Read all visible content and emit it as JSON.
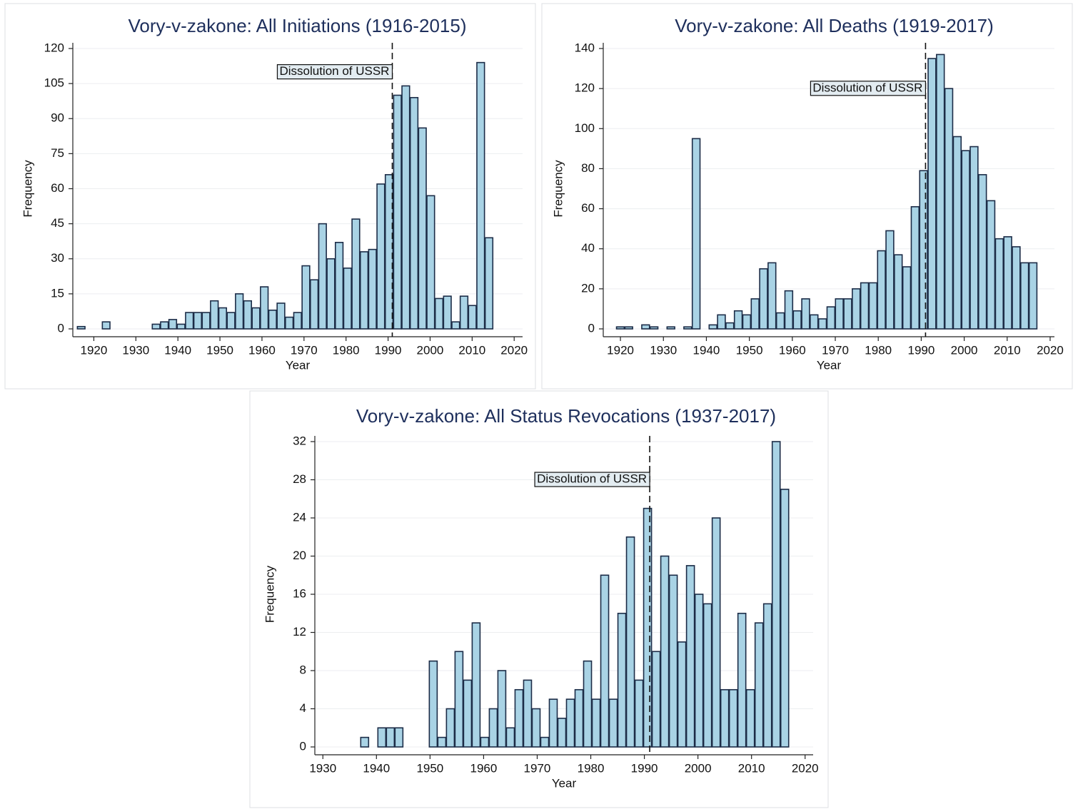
{
  "chart_data": [
    {
      "type": "histogram",
      "title": "Vory-v-zakone: All Initiations (1916-2015)",
      "x_label": "Year",
      "y_label": "Frequency",
      "annotation": "Dissolution of USSR",
      "vline": 1991,
      "color": "#a9d3e5",
      "edge_color": "#1c2c47",
      "grid": true,
      "bins": [
        1916,
        1917.98,
        1919.96,
        1921.94,
        1923.92,
        1925.9,
        1927.88,
        1929.86,
        1931.84,
        1933.82,
        1935.8,
        1937.78,
        1939.76,
        1941.74,
        1943.72,
        1945.7,
        1947.68,
        1949.66,
        1951.64,
        1953.62,
        1955.6,
        1957.58,
        1959.56,
        1961.54,
        1963.52,
        1965.5,
        1967.48,
        1969.46,
        1971.44,
        1973.42,
        1975.4,
        1977.38,
        1979.36,
        1981.34,
        1983.32,
        1985.3,
        1987.28,
        1989.26,
        1991.24,
        1993.22,
        1995.2,
        1997.18,
        1999.16,
        2001.14,
        2003.12,
        2005.1,
        2007.08,
        2009.06,
        2011.04,
        2013.02,
        2015
      ],
      "values": [
        1,
        0,
        0,
        3,
        0,
        0,
        0,
        0,
        0,
        2,
        3,
        4,
        2,
        7,
        7,
        7,
        12,
        9,
        7,
        15,
        12,
        9,
        18,
        8,
        11,
        5,
        7,
        27,
        21,
        45,
        30,
        37,
        26,
        47,
        33,
        34,
        62,
        66,
        100,
        104,
        99,
        86,
        57,
        13,
        14,
        3,
        14,
        10,
        114,
        39
      ],
      "xlim": [
        1915,
        2022
      ],
      "xticks": [
        1920,
        1930,
        1940,
        1950,
        1960,
        1970,
        1980,
        1990,
        2000,
        2010,
        2020
      ],
      "ylim": [
        0,
        120
      ],
      "yticks": [
        0,
        15,
        30,
        45,
        60,
        75,
        90,
        105,
        120
      ]
    },
    {
      "type": "histogram",
      "title": "Vory-v-zakone: All Deaths (1919-2017)",
      "x_label": "Year",
      "y_label": "Frequency",
      "annotation": "Dissolution of USSR",
      "vline": 1991,
      "color": "#a9d3e5",
      "edge_color": "#1c2c47",
      "grid": true,
      "bins": [
        1919,
        1920.96,
        1922.92,
        1924.88,
        1926.84,
        1928.8,
        1930.76,
        1932.72,
        1934.68,
        1936.64,
        1938.6,
        1940.56,
        1942.52,
        1944.48,
        1946.44,
        1948.4,
        1950.36,
        1952.32,
        1954.28,
        1956.24,
        1958.2,
        1960.16,
        1962.12,
        1964.08,
        1966.04,
        1968,
        1969.96,
        1971.92,
        1973.88,
        1975.84,
        1977.8,
        1979.76,
        1981.72,
        1983.68,
        1985.64,
        1987.6,
        1989.56,
        1991.52,
        1993.48,
        1995.44,
        1997.4,
        1999.36,
        2001.32,
        2003.28,
        2005.24,
        2007.2,
        2009.16,
        2011.12,
        2013.08,
        2015.04,
        2017
      ],
      "values": [
        1,
        1,
        0,
        2,
        1,
        0,
        1,
        0,
        1,
        95,
        0,
        2,
        7,
        3,
        9,
        7,
        15,
        30,
        33,
        8,
        19,
        9,
        15,
        7,
        5,
        11,
        15,
        15,
        20,
        23,
        23,
        39,
        49,
        37,
        31,
        61,
        79,
        135,
        137,
        120,
        96,
        89,
        91,
        77,
        64,
        45,
        46,
        41,
        33,
        33
      ],
      "xlim": [
        1916,
        2021
      ],
      "xticks": [
        1920,
        1930,
        1940,
        1950,
        1960,
        1970,
        1980,
        1990,
        2000,
        2010,
        2020
      ],
      "ylim": [
        0,
        140
      ],
      "yticks": [
        0,
        20,
        40,
        60,
        80,
        100,
        120,
        140
      ]
    },
    {
      "type": "histogram",
      "title": "Vory-v-zakone: All Status Revocations (1937-2017)",
      "x_label": "Year",
      "y_label": "Frequency",
      "annotation": "Dissolution of USSR",
      "vline": 1991,
      "color": "#a9d3e5",
      "edge_color": "#1c2c47",
      "grid": true,
      "bins": [
        1937,
        1938.6,
        1940.2,
        1941.8,
        1943.4,
        1945,
        1946.6,
        1948.2,
        1949.8,
        1951.4,
        1953,
        1954.6,
        1956.2,
        1957.8,
        1959.4,
        1961,
        1962.6,
        1964.2,
        1965.8,
        1967.4,
        1969,
        1970.6,
        1972.2,
        1973.8,
        1975.4,
        1977,
        1978.6,
        1980.2,
        1981.8,
        1983.4,
        1985,
        1986.6,
        1988.2,
        1989.8,
        1991.4,
        1993,
        1994.6,
        1996.2,
        1997.8,
        1999.4,
        2001,
        2002.6,
        2004.2,
        2005.8,
        2007.4,
        2009,
        2010.6,
        2012.2,
        2013.8,
        2015.4,
        2017
      ],
      "values": [
        1,
        0,
        2,
        2,
        2,
        0,
        0,
        0,
        9,
        1,
        4,
        10,
        7,
        13,
        1,
        4,
        8,
        2,
        6,
        7,
        4,
        1,
        5,
        3,
        5,
        6,
        9,
        5,
        18,
        5,
        14,
        22,
        7,
        25,
        10,
        20,
        18,
        11,
        19,
        16,
        15,
        24,
        6,
        6,
        14,
        6,
        13,
        15,
        32,
        27
      ],
      "xlim": [
        1928.5,
        2021.5
      ],
      "xticks": [
        1930,
        1940,
        1950,
        1960,
        1970,
        1980,
        1990,
        2000,
        2010,
        2020
      ],
      "ylim": [
        0,
        32
      ],
      "yticks": [
        0,
        4,
        8,
        12,
        16,
        20,
        24,
        28,
        32
      ]
    }
  ]
}
